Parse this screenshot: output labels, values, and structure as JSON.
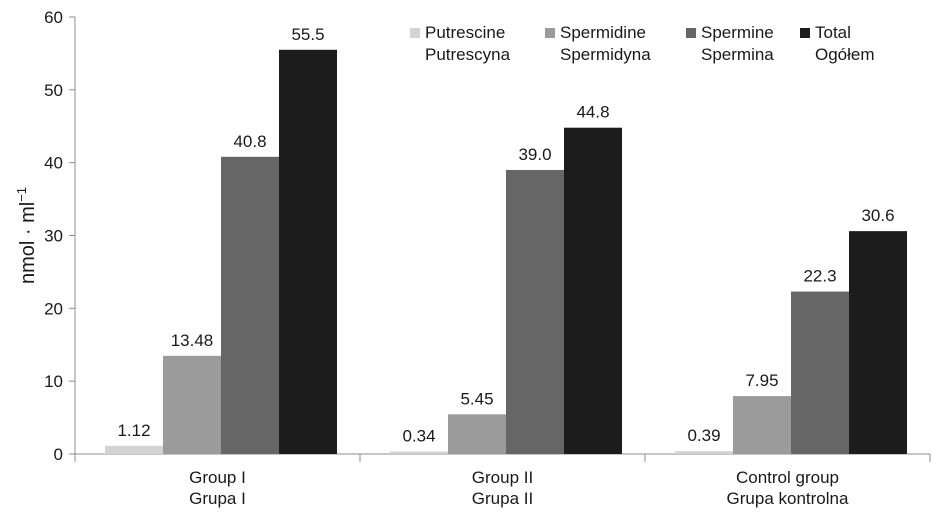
{
  "chart_data": {
    "type": "bar",
    "title": "",
    "ylabel": "nmol · ml",
    "ylabel_sup": "−1",
    "ylim": [
      0,
      60
    ],
    "yticks": [
      0,
      10,
      20,
      30,
      40,
      50,
      60
    ],
    "grid": false,
    "legend_position": "top-right",
    "categories": [
      [
        "Group I",
        "Grupa I"
      ],
      [
        "Group II",
        "Grupa II"
      ],
      [
        "Control group",
        "Grupa kontrolna"
      ]
    ],
    "series": [
      {
        "name": [
          "Putrescine",
          "Putrescyna"
        ],
        "color": "#d3d3d3",
        "values": [
          1.12,
          0.34,
          0.39
        ],
        "labels": [
          "1.12",
          "0.34",
          "0.39"
        ]
      },
      {
        "name": [
          "Spermidine",
          "Spermidyna"
        ],
        "color": "#9b9b9b",
        "values": [
          13.48,
          5.45,
          7.95
        ],
        "labels": [
          "13.48",
          "5.45",
          "7.95"
        ]
      },
      {
        "name": [
          "Spermine",
          "Spermina"
        ],
        "color": "#666666",
        "values": [
          40.8,
          39.0,
          22.3
        ],
        "labels": [
          "40.8",
          "39.0",
          "22.3"
        ]
      },
      {
        "name": [
          "Total",
          "Ogółem"
        ],
        "color": "#1c1c1c",
        "values": [
          55.5,
          44.8,
          30.6
        ],
        "labels": [
          "55.5",
          "44.8",
          "30.6"
        ]
      }
    ]
  }
}
